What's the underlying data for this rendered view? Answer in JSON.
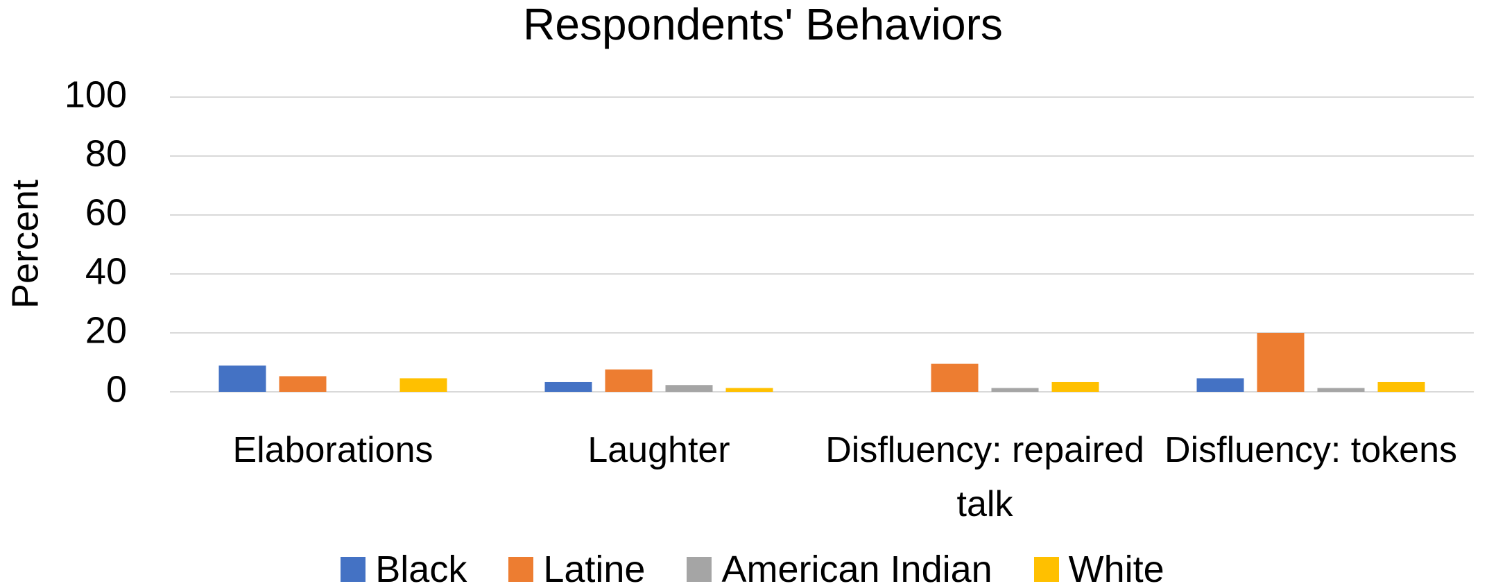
{
  "chart_data": {
    "type": "bar",
    "title": "Respondents' Behaviors",
    "y_label": "Percent",
    "categories": [
      "Elaborations",
      "Laughter",
      "Disfluency: repaired talk",
      "Disfluency: tokens"
    ],
    "series": [
      {
        "name": "Black",
        "color": "#4472c4",
        "values": [
          8.9,
          3.3,
          0,
          4.6
        ]
      },
      {
        "name": "Latine",
        "color": "#ed7d31",
        "values": [
          5.3,
          7.6,
          9.5,
          20
        ]
      },
      {
        "name": "American Indian",
        "color": "#a5a5a5",
        "values": [
          0,
          2.3,
          1.3,
          1.3
        ]
      },
      {
        "name": "White",
        "color": "#ffc000",
        "values": [
          4.6,
          1.3,
          3.3,
          3.3
        ]
      }
    ],
    "ylim": [
      0,
      100
    ],
    "yticks": [
      0,
      20,
      40,
      60,
      80,
      100
    ],
    "grid": true,
    "legend": "bottom"
  }
}
